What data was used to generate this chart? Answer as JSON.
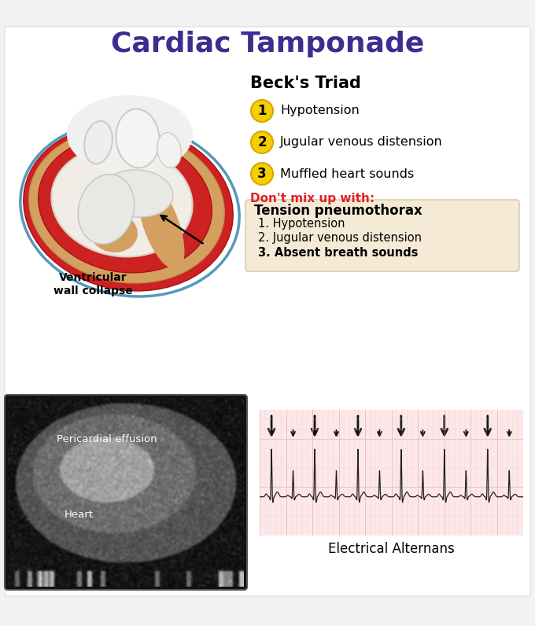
{
  "title": "Cardiac Tamponade",
  "title_color": "#3a2f8f",
  "title_fontsize": 26,
  "background_color": "#f2f2f2",
  "white_panel_color": "#ffffff",
  "becks_triad_title": "Beck's Triad",
  "becks_items": [
    "Hypotension",
    "Jugular venous distension",
    "Muffled heart sounds"
  ],
  "circle_color": "#f5d000",
  "circle_edge_color": "#d4a800",
  "dont_mix_text": "Don't mix up with:",
  "dont_mix_color": "#dd2222",
  "tension_title": "Tension pneumothorax",
  "tension_items_normal": [
    "1. Hypotension",
    "2. Jugular venous distension"
  ],
  "tension_item_bold": "3. Absent breath sounds",
  "tension_box_color": "#f5ead5",
  "tension_box_edge": "#d4c4a0",
  "ventricular_label": "Ventricular\nwall collapse",
  "pericardial_label": "Pericardial effusion",
  "heart_label": "Heart",
  "electrical_label": "Electrical Alternans",
  "ecg_bg_color": "#fce8e8",
  "ecg_line_color": "#222222",
  "ecg_grid_major": "#e8b0b0",
  "ecg_grid_minor": "#f2d0d0",
  "arrow_color": "#111111",
  "heart_outer_red": "#cc2222",
  "heart_effusion_tan": "#d4a060",
  "heart_body_color": "#e8d8b8",
  "heart_vessel_color": "#e8e8e8"
}
